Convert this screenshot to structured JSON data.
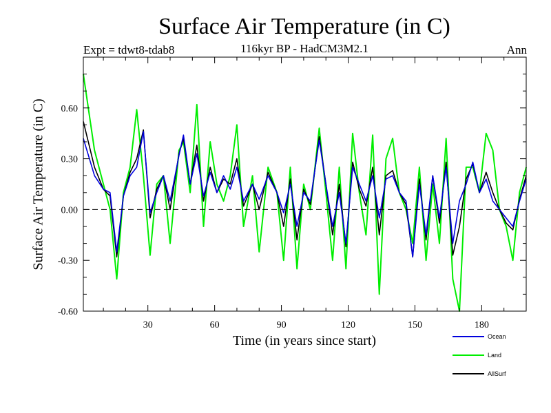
{
  "header": {
    "title": "Surface Air Temperature (in C)",
    "subtitle": "116kyr BP - HadCM3M2.1",
    "experiment": "Expt = tdwt8-tdab8",
    "season": "Ann"
  },
  "chart_data": {
    "type": "line",
    "title": "Surface Air Temperature (in C)",
    "subtitle": "116kyr BP - HadCM3M2.1",
    "xlabel": "Time (in years since start)",
    "ylabel": "Surface Air Temperature (in C)",
    "xlim": [
      1,
      200
    ],
    "ylim": [
      -0.6,
      0.9
    ],
    "xticks": [
      30,
      60,
      90,
      120,
      150,
      180
    ],
    "xtick_labels": [
      "30",
      "60",
      "90",
      "120",
      "150",
      "180"
    ],
    "yticks": [
      -0.6,
      -0.3,
      0.0,
      0.3,
      0.6
    ],
    "ytick_labels": [
      "-0.60",
      "-0.30",
      "0.00",
      "0.30",
      "0.60"
    ],
    "zero_line": "dashed",
    "legend_position": "bottom-right, outside plot",
    "x": [
      1,
      6,
      10,
      13,
      16,
      19,
      22,
      25,
      28,
      31,
      34,
      37,
      40,
      44,
      46,
      49,
      52,
      55,
      58,
      61,
      64,
      67,
      70,
      73,
      77,
      80,
      84,
      88,
      91,
      94,
      97,
      100,
      103,
      107,
      110,
      113,
      116,
      119,
      122,
      125,
      128,
      131,
      134,
      137,
      140,
      143,
      146,
      149,
      152,
      155,
      158,
      161,
      164,
      167,
      170,
      173,
      176,
      179,
      182,
      185,
      188,
      191,
      194,
      197,
      200
    ],
    "series": [
      {
        "name": "Ocean",
        "color": "#0000dd",
        "values": [
          0.42,
          0.2,
          0.12,
          0.1,
          -0.25,
          0.08,
          0.2,
          0.25,
          0.46,
          -0.02,
          0.1,
          0.2,
          0.05,
          0.32,
          0.44,
          0.15,
          0.33,
          0.08,
          0.22,
          0.1,
          0.2,
          0.12,
          0.25,
          0.05,
          0.15,
          0.06,
          0.2,
          0.1,
          -0.02,
          0.15,
          -0.1,
          0.1,
          0.05,
          0.41,
          0.15,
          -0.1,
          0.1,
          -0.2,
          0.25,
          0.15,
          0.05,
          0.2,
          -0.05,
          0.18,
          0.2,
          0.1,
          0.05,
          -0.28,
          0.15,
          -0.15,
          0.2,
          -0.05,
          0.25,
          -0.2,
          0.05,
          0.15,
          0.28,
          0.1,
          0.18,
          0.05,
          0.0,
          -0.05,
          -0.1,
          0.05,
          0.18
        ]
      },
      {
        "name": "Land",
        "color": "#00ee00",
        "values": [
          0.8,
          0.35,
          0.15,
          0.0,
          -0.41,
          0.1,
          0.25,
          0.59,
          0.2,
          -0.27,
          0.15,
          0.2,
          -0.2,
          0.35,
          0.4,
          0.1,
          0.62,
          -0.1,
          0.4,
          0.15,
          0.05,
          0.2,
          0.5,
          -0.1,
          0.2,
          -0.25,
          0.25,
          0.1,
          -0.3,
          0.25,
          -0.35,
          0.15,
          0.0,
          0.48,
          0.1,
          -0.3,
          0.25,
          -0.35,
          0.45,
          0.1,
          -0.15,
          0.44,
          -0.5,
          0.3,
          0.42,
          0.1,
          0.0,
          -0.2,
          0.25,
          -0.3,
          0.15,
          -0.2,
          0.42,
          -0.41,
          -0.6,
          0.25,
          0.25,
          0.1,
          0.45,
          0.35,
          0.0,
          -0.1,
          -0.3,
          0.1,
          0.25
        ]
      },
      {
        "name": "AllSurf",
        "color": "#000000",
        "values": [
          0.52,
          0.25,
          0.12,
          0.08,
          -0.28,
          0.08,
          0.22,
          0.3,
          0.47,
          -0.05,
          0.12,
          0.2,
          0.0,
          0.33,
          0.42,
          0.15,
          0.38,
          0.05,
          0.25,
          0.1,
          0.18,
          0.15,
          0.3,
          0.02,
          0.15,
          0.0,
          0.22,
          0.1,
          -0.1,
          0.18,
          -0.18,
          0.12,
          0.03,
          0.43,
          0.15,
          -0.15,
          0.15,
          -0.22,
          0.28,
          0.12,
          0.02,
          0.25,
          -0.15,
          0.2,
          0.23,
          0.1,
          0.03,
          -0.28,
          0.18,
          -0.18,
          0.2,
          -0.08,
          0.28,
          -0.27,
          -0.1,
          0.18,
          0.27,
          0.1,
          0.22,
          0.1,
          0.0,
          -0.08,
          -0.12,
          0.06,
          0.2
        ]
      }
    ]
  }
}
